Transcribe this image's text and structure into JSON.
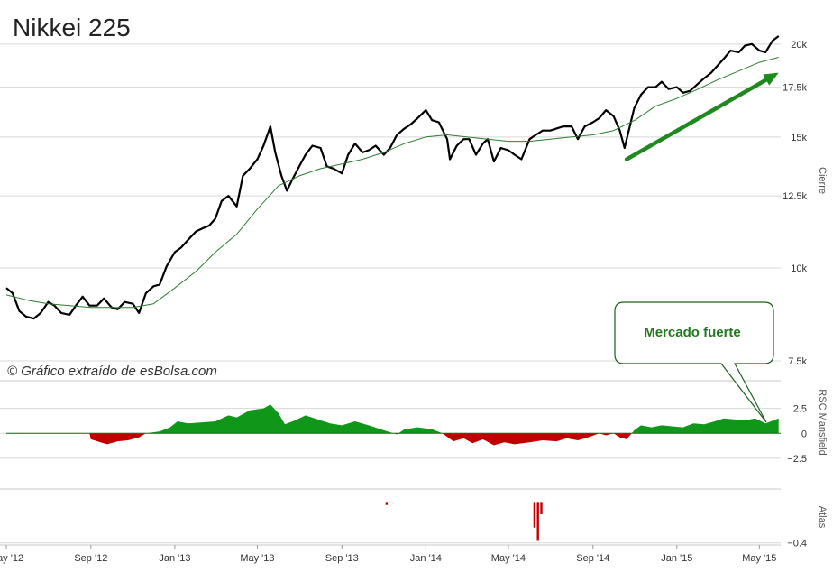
{
  "chart_title": "Nikkei 225",
  "credit": "© Gráfico extraído de esBolsa.com",
  "colors": {
    "price": "#000000",
    "ma": "#2e7d32",
    "positive": "#109618",
    "negative": "#c00000",
    "grid": "#d8d8d8",
    "arrow": "#1e8a1e",
    "callout_border": "#1e5f1e"
  },
  "chart_data": [
    {
      "type": "line",
      "panel": "price",
      "ylabel": "Cierre",
      "yticks": [
        "7.5k",
        "10k",
        "12.5k",
        "15k",
        "17.5k",
        "20k"
      ],
      "ytick_values": [
        7500,
        10000,
        12500,
        15000,
        17500,
        20000
      ],
      "ylim": [
        7500,
        20500
      ],
      "scale": "log",
      "xlabels": [
        "May '12",
        "Sep '12",
        "Jan '13",
        "May '13",
        "Sep '13",
        "Jan '14",
        "May '14",
        "Sep '14",
        "Jan '15",
        "May '15"
      ],
      "x_start": "2012-05-01",
      "x_end": "2015-06-01",
      "series": [
        {
          "style": "bold",
          "points": [
            [
              "2012-05-01",
              9400
            ],
            [
              "2012-05-10",
              9250
            ],
            [
              "2012-05-20",
              8750
            ],
            [
              "2012-05-30",
              8600
            ],
            [
              "2012-06-10",
              8550
            ],
            [
              "2012-06-20",
              8700
            ],
            [
              "2012-07-01",
              9000
            ],
            [
              "2012-07-10",
              8900
            ],
            [
              "2012-07-20",
              8700
            ],
            [
              "2012-08-01",
              8650
            ],
            [
              "2012-08-10",
              8900
            ],
            [
              "2012-08-20",
              9150
            ],
            [
              "2012-08-30",
              8900
            ],
            [
              "2012-09-10",
              8900
            ],
            [
              "2012-09-20",
              9100
            ],
            [
              "2012-10-01",
              8850
            ],
            [
              "2012-10-10",
              8800
            ],
            [
              "2012-10-20",
              9000
            ],
            [
              "2012-11-01",
              8950
            ],
            [
              "2012-11-10",
              8700
            ],
            [
              "2012-11-20",
              9250
            ],
            [
              "2012-12-01",
              9450
            ],
            [
              "2012-12-10",
              9500
            ],
            [
              "2012-12-20",
              10050
            ],
            [
              "2013-01-01",
              10500
            ],
            [
              "2013-01-10",
              10650
            ],
            [
              "2013-01-20",
              10900
            ],
            [
              "2013-02-01",
              11200
            ],
            [
              "2013-02-10",
              11300
            ],
            [
              "2013-02-20",
              11400
            ],
            [
              "2013-03-01",
              11650
            ],
            [
              "2013-03-10",
              12300
            ],
            [
              "2013-03-20",
              12500
            ],
            [
              "2013-04-01",
              12100
            ],
            [
              "2013-04-10",
              13300
            ],
            [
              "2013-04-20",
              13600
            ],
            [
              "2013-05-01",
              14000
            ],
            [
              "2013-05-10",
              14600
            ],
            [
              "2013-05-20",
              15500
            ],
            [
              "2013-05-27",
              14300
            ],
            [
              "2013-06-05",
              13300
            ],
            [
              "2013-06-13",
              12700
            ],
            [
              "2013-06-20",
              13100
            ],
            [
              "2013-07-01",
              13700
            ],
            [
              "2013-07-10",
              14200
            ],
            [
              "2013-07-20",
              14600
            ],
            [
              "2013-08-01",
              14500
            ],
            [
              "2013-08-10",
              13700
            ],
            [
              "2013-08-20",
              13600
            ],
            [
              "2013-09-01",
              13400
            ],
            [
              "2013-09-10",
              14200
            ],
            [
              "2013-09-20",
              14700
            ],
            [
              "2013-10-01",
              14300
            ],
            [
              "2013-10-10",
              14400
            ],
            [
              "2013-10-20",
              14600
            ],
            [
              "2013-11-01",
              14200
            ],
            [
              "2013-11-10",
              14500
            ],
            [
              "2013-11-20",
              15100
            ],
            [
              "2013-12-01",
              15400
            ],
            [
              "2013-12-10",
              15600
            ],
            [
              "2013-12-20",
              15900
            ],
            [
              "2014-01-01",
              16300
            ],
            [
              "2014-01-10",
              15800
            ],
            [
              "2014-01-20",
              15700
            ],
            [
              "2014-02-01",
              14900
            ],
            [
              "2014-02-05",
              14000
            ],
            [
              "2014-02-15",
              14600
            ],
            [
              "2014-02-25",
              14900
            ],
            [
              "2014-03-05",
              14900
            ],
            [
              "2014-03-15",
              14200
            ],
            [
              "2014-03-25",
              14700
            ],
            [
              "2014-04-01",
              14900
            ],
            [
              "2014-04-10",
              13900
            ],
            [
              "2014-04-20",
              14500
            ],
            [
              "2014-05-01",
              14400
            ],
            [
              "2014-05-10",
              14200
            ],
            [
              "2014-05-20",
              14000
            ],
            [
              "2014-06-01",
              14900
            ],
            [
              "2014-06-10",
              15100
            ],
            [
              "2014-06-20",
              15300
            ],
            [
              "2014-07-01",
              15300
            ],
            [
              "2014-07-10",
              15400
            ],
            [
              "2014-07-20",
              15500
            ],
            [
              "2014-08-01",
              15500
            ],
            [
              "2014-08-10",
              14900
            ],
            [
              "2014-08-20",
              15500
            ],
            [
              "2014-09-01",
              15700
            ],
            [
              "2014-09-10",
              15900
            ],
            [
              "2014-09-20",
              16300
            ],
            [
              "2014-10-01",
              16000
            ],
            [
              "2014-10-10",
              15300
            ],
            [
              "2014-10-17",
              14500
            ],
            [
              "2014-10-31",
              16400
            ],
            [
              "2014-11-10",
              17100
            ],
            [
              "2014-11-20",
              17500
            ],
            [
              "2014-12-01",
              17500
            ],
            [
              "2014-12-10",
              17800
            ],
            [
              "2014-12-20",
              17400
            ],
            [
              "2015-01-01",
              17500
            ],
            [
              "2015-01-10",
              17200
            ],
            [
              "2015-01-20",
              17300
            ],
            [
              "2015-02-01",
              17700
            ],
            [
              "2015-02-10",
              18000
            ],
            [
              "2015-02-20",
              18300
            ],
            [
              "2015-03-01",
              18700
            ],
            [
              "2015-03-10",
              19100
            ],
            [
              "2015-03-20",
              19600
            ],
            [
              "2015-04-01",
              19500
            ],
            [
              "2015-04-10",
              19900
            ],
            [
              "2015-04-20",
              20000
            ],
            [
              "2015-05-01",
              19600
            ],
            [
              "2015-05-10",
              19500
            ],
            [
              "2015-05-20",
              20200
            ],
            [
              "2015-05-29",
              20500
            ]
          ]
        },
        {
          "style": "thin",
          "points": [
            [
              "2012-05-01",
              9200
            ],
            [
              "2012-06-01",
              9050
            ],
            [
              "2012-07-01",
              8950
            ],
            [
              "2012-08-01",
              8900
            ],
            [
              "2012-09-01",
              8850
            ],
            [
              "2012-10-01",
              8850
            ],
            [
              "2012-11-01",
              8850
            ],
            [
              "2012-12-01",
              8950
            ],
            [
              "2013-01-01",
              9400
            ],
            [
              "2013-02-01",
              9900
            ],
            [
              "2013-03-01",
              10500
            ],
            [
              "2013-04-01",
              11100
            ],
            [
              "2013-05-01",
              12000
            ],
            [
              "2013-06-01",
              12900
            ],
            [
              "2013-07-01",
              13300
            ],
            [
              "2013-08-01",
              13600
            ],
            [
              "2013-09-01",
              13800
            ],
            [
              "2013-10-01",
              14000
            ],
            [
              "2013-11-01",
              14300
            ],
            [
              "2013-12-01",
              14700
            ],
            [
              "2014-01-01",
              15000
            ],
            [
              "2014-02-01",
              15100
            ],
            [
              "2014-03-01",
              15000
            ],
            [
              "2014-04-01",
              14900
            ],
            [
              "2014-05-01",
              14800
            ],
            [
              "2014-06-01",
              14800
            ],
            [
              "2014-07-01",
              14900
            ],
            [
              "2014-08-01",
              15000
            ],
            [
              "2014-09-01",
              15100
            ],
            [
              "2014-10-01",
              15300
            ],
            [
              "2014-11-01",
              15800
            ],
            [
              "2014-12-01",
              16500
            ],
            [
              "2015-01-01",
              16900
            ],
            [
              "2015-02-01",
              17400
            ],
            [
              "2015-03-01",
              17900
            ],
            [
              "2015-04-01",
              18400
            ],
            [
              "2015-05-01",
              18900
            ],
            [
              "2015-05-29",
              19200
            ]
          ]
        }
      ],
      "annotations": [
        {
          "type": "arrow",
          "from": [
            "2014-10-20",
            14000
          ],
          "to": [
            "2015-05-29",
            18300
          ]
        }
      ]
    },
    {
      "type": "area",
      "panel": "rsc",
      "ylabel": "RSC Mansfield",
      "yticks": [
        "2.5",
        "0",
        "−2.5"
      ],
      "ytick_values": [
        2.5,
        0,
        -2.5
      ],
      "ylim": [
        -4.5,
        5
      ],
      "points": [
        [
          "2012-05-01",
          0
        ],
        [
          "2012-08-30",
          0
        ],
        [
          "2012-09-01",
          -0.6
        ],
        [
          "2012-09-15",
          -0.9
        ],
        [
          "2012-09-25",
          -1.1
        ],
        [
          "2012-10-10",
          -0.8
        ],
        [
          "2012-10-25",
          -0.7
        ],
        [
          "2012-11-10",
          -0.4
        ],
        [
          "2012-11-20",
          0
        ],
        [
          "2012-12-10",
          0.2
        ],
        [
          "2012-12-25",
          0.6
        ],
        [
          "2013-01-05",
          1.2
        ],
        [
          "2013-01-20",
          1.0
        ],
        [
          "2013-02-10",
          1.1
        ],
        [
          "2013-03-01",
          1.2
        ],
        [
          "2013-03-20",
          1.8
        ],
        [
          "2013-04-01",
          1.6
        ],
        [
          "2013-04-20",
          2.3
        ],
        [
          "2013-05-10",
          2.5
        ],
        [
          "2013-05-20",
          2.9
        ],
        [
          "2013-06-01",
          2.0
        ],
        [
          "2013-06-10",
          0.9
        ],
        [
          "2013-06-25",
          1.3
        ],
        [
          "2013-07-10",
          1.8
        ],
        [
          "2013-08-01",
          1.3
        ],
        [
          "2013-08-15",
          1.0
        ],
        [
          "2013-09-01",
          0.8
        ],
        [
          "2013-09-20",
          1.2
        ],
        [
          "2013-10-10",
          0.8
        ],
        [
          "2013-11-01",
          0.3
        ],
        [
          "2013-11-20",
          -0.1
        ],
        [
          "2013-12-01",
          0.4
        ],
        [
          "2013-12-20",
          0.6
        ],
        [
          "2014-01-10",
          0.4
        ],
        [
          "2014-01-25",
          0
        ],
        [
          "2014-02-10",
          -0.8
        ],
        [
          "2014-02-25",
          -0.5
        ],
        [
          "2014-03-10",
          -1.0
        ],
        [
          "2014-03-25",
          -0.6
        ],
        [
          "2014-04-10",
          -1.2
        ],
        [
          "2014-04-25",
          -0.9
        ],
        [
          "2014-05-10",
          -1.1
        ],
        [
          "2014-06-01",
          -0.9
        ],
        [
          "2014-06-20",
          -0.7
        ],
        [
          "2014-07-10",
          -0.8
        ],
        [
          "2014-07-25",
          -0.5
        ],
        [
          "2014-08-10",
          -0.7
        ],
        [
          "2014-08-25",
          -0.4
        ],
        [
          "2014-09-10",
          0
        ],
        [
          "2014-09-20",
          -0.2
        ],
        [
          "2014-10-01",
          0
        ],
        [
          "2014-10-10",
          -0.4
        ],
        [
          "2014-10-20",
          -0.6
        ],
        [
          "2014-10-31",
          0.3
        ],
        [
          "2014-11-10",
          0.8
        ],
        [
          "2014-11-25",
          0.6
        ],
        [
          "2014-12-10",
          0.8
        ],
        [
          "2014-12-25",
          0.7
        ],
        [
          "2015-01-10",
          0.6
        ],
        [
          "2015-01-25",
          1.0
        ],
        [
          "2015-02-10",
          0.9
        ],
        [
          "2015-02-25",
          1.2
        ],
        [
          "2015-03-10",
          1.5
        ],
        [
          "2015-03-25",
          1.4
        ],
        [
          "2015-04-10",
          1.3
        ],
        [
          "2015-04-25",
          1.5
        ],
        [
          "2015-05-10",
          1.0
        ],
        [
          "2015-05-29",
          1.5
        ]
      ]
    },
    {
      "type": "bar",
      "panel": "atlas",
      "ylabel": "Atlas",
      "yticks": [
        "−0.4"
      ],
      "ytick_values": [
        -0.4
      ],
      "ylim": [
        -0.42,
        0.1
      ],
      "bars": [
        [
          "2013-11-05",
          -0.03
        ],
        [
          "2014-06-08",
          -0.25
        ],
        [
          "2014-06-13",
          -0.38
        ],
        [
          "2014-06-18",
          -0.12
        ]
      ]
    }
  ],
  "callout": {
    "text": "Mercado fuerte"
  }
}
